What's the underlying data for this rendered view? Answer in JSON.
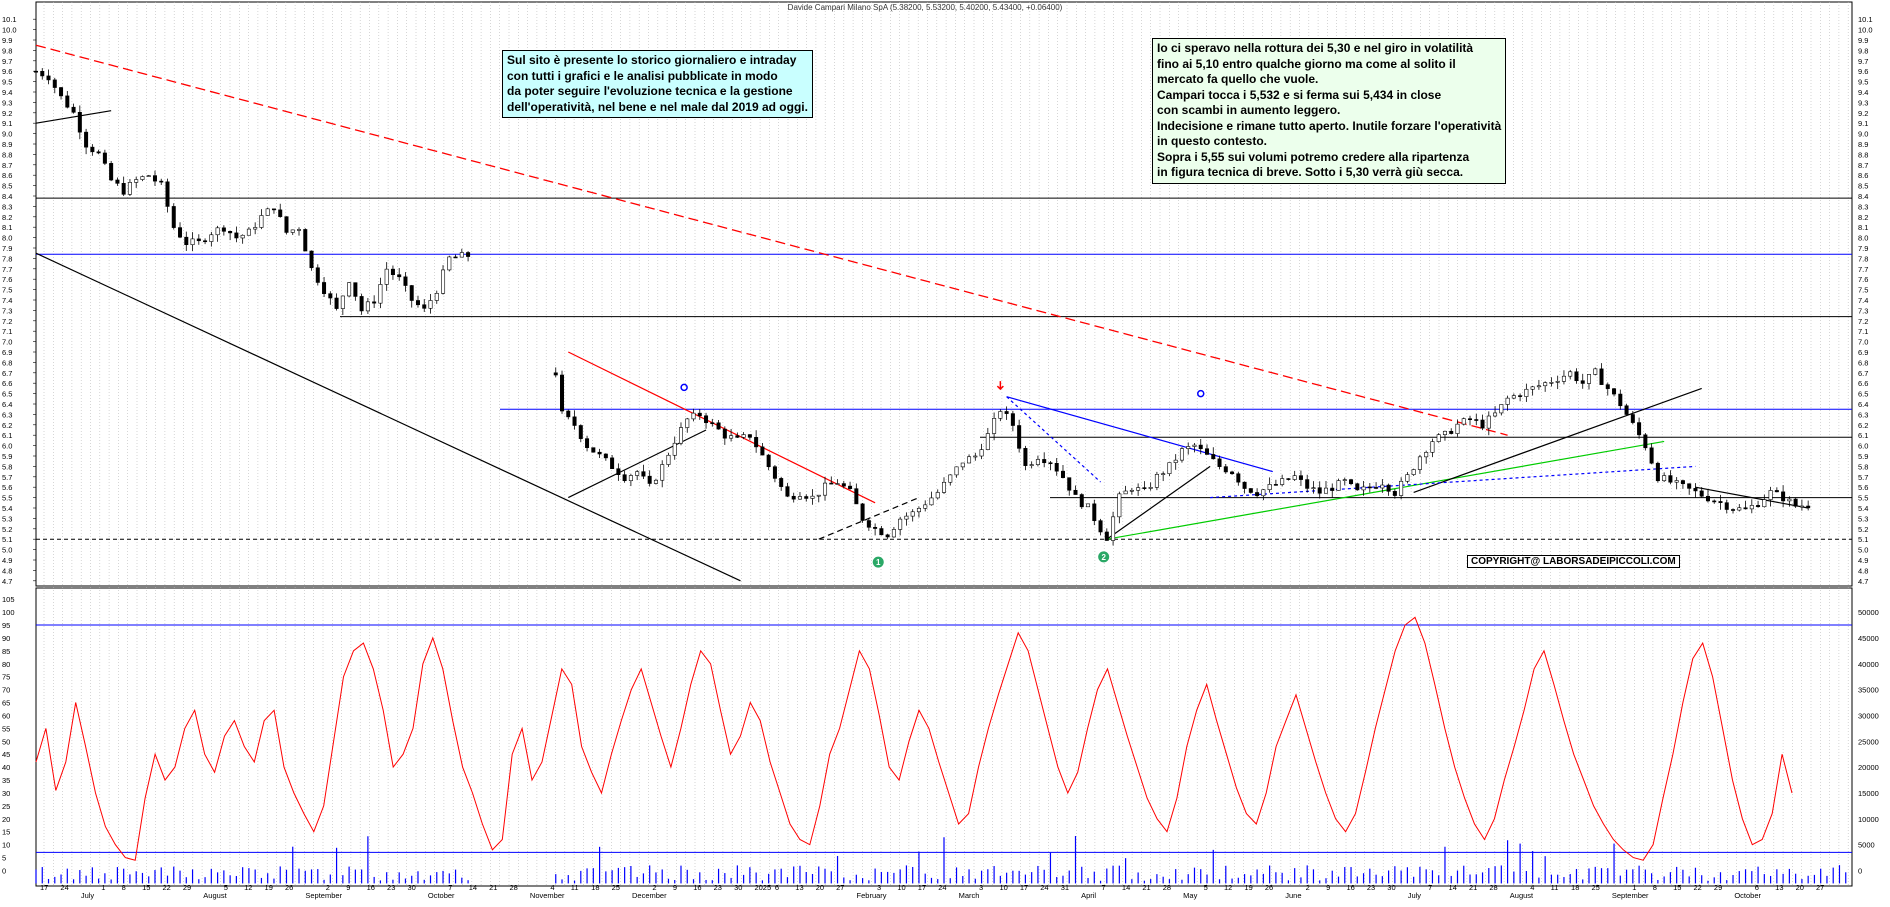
{
  "title": "Davide Campari Milano SpA (5.38200, 5.53200, 5.40200, 5.43400, +0.06400)",
  "note_left": {
    "lines": [
      "Sul sito è presente lo storico giornaliero e intraday",
      "con tutti i grafici e le analisi pubblicate in modo",
      "da poter seguire l'evoluzione tecnica e la gestione",
      "dell'operatività, nel bene e nel male dal 2019 ad oggi."
    ]
  },
  "note_right": {
    "lines": [
      "Io ci speravo nella rottura dei 5,30 e nel giro in volatilità",
      "fino ai 5,10 entro qualche giorno ma come al solito il",
      "mercato fa quello che vuole.",
      "Campari tocca i 5,532 e si ferma sui 5,434 in close",
      "con scambi in aumento leggero.",
      "Indecisione e rimane tutto aperto. Inutile forzare l'operatività",
      "in questo contesto.",
      "Sopra i 5,55 sui volumi potremo credere alla ripartenza",
      "in figura tecnica di breve. Sotto i 5,30 verrà giù secca."
    ]
  },
  "copyright": "COPYRIGHT@ LABORSADEIPICCOLI.COM",
  "colors": {
    "candle": "#000000",
    "hline_blue": "#0000ff",
    "hline_black": "#000000",
    "resistance_red_dashed": "#ff0000",
    "trend_red": "#ff0000",
    "trend_blue": "#0000ff",
    "trend_green": "#00cc00",
    "stoch_line": "#ff0000",
    "volume_bars": "#0000ff",
    "grid": "#bbbbbb"
  },
  "chart_data": [
    {
      "type": "candlestick",
      "yticks": [
        "4.7",
        "4.8",
        "4.9",
        "5.0",
        "5.1",
        "5.2",
        "5.3",
        "5.4",
        "5.5",
        "5.6",
        "5.7",
        "5.8",
        "5.9",
        "6.0",
        "6.1",
        "6.2",
        "6.3",
        "6.4",
        "6.5",
        "6.6",
        "6.7",
        "6.8",
        "6.9",
        "7.0",
        "7.1",
        "7.2",
        "7.3",
        "7.4",
        "7.5",
        "7.6",
        "7.7",
        "7.8",
        "7.9",
        "8.0",
        "8.1",
        "8.2",
        "8.3",
        "8.4",
        "8.5",
        "8.6",
        "8.7",
        "8.8",
        "8.9",
        "9.0",
        "9.1",
        "9.2",
        "9.3",
        "9.4",
        "9.5",
        "9.6",
        "9.7",
        "9.8",
        "9.9",
        "10.0",
        "10.1"
      ],
      "ylim": [
        4.65,
        10.15
      ],
      "horizontal_levels": [
        {
          "value": 8.38,
          "color": "black"
        },
        {
          "value": 7.84,
          "color": "blue"
        },
        {
          "value": 7.24,
          "color": "black"
        },
        {
          "value": 6.35,
          "color": "blue"
        },
        {
          "value": 6.08,
          "color": "black"
        },
        {
          "value": 5.5,
          "color": "black"
        },
        {
          "value": 5.1,
          "color": "black",
          "style": "dashed"
        }
      ],
      "close_path": [
        [
          0,
          9.6
        ],
        [
          4,
          9.55
        ],
        [
          8,
          9.35
        ],
        [
          12,
          9.2
        ],
        [
          16,
          8.9
        ],
        [
          20,
          8.8
        ],
        [
          24,
          8.55
        ],
        [
          28,
          8.45
        ],
        [
          32,
          8.55
        ],
        [
          36,
          8.6
        ],
        [
          40,
          8.5
        ],
        [
          44,
          8.1
        ],
        [
          48,
          7.95
        ],
        [
          52,
          7.95
        ],
        [
          56,
          8.05
        ],
        [
          60,
          8.1
        ],
        [
          64,
          8.0
        ],
        [
          68,
          8.05
        ],
        [
          72,
          8.2
        ],
        [
          76,
          8.3
        ],
        [
          80,
          8.05
        ],
        [
          84,
          8.1
        ],
        [
          88,
          7.7
        ],
        [
          92,
          7.5
        ],
        [
          96,
          7.3
        ],
        [
          100,
          7.6
        ],
        [
          104,
          7.3
        ],
        [
          108,
          7.4
        ],
        [
          112,
          7.7
        ],
        [
          116,
          7.6
        ],
        [
          120,
          7.4
        ],
        [
          124,
          7.3
        ],
        [
          128,
          7.5
        ],
        [
          132,
          7.8
        ],
        [
          136,
          7.82
        ],
        [
          139,
          7.83
        ],
        [
          166,
          6.7
        ],
        [
          168,
          6.3
        ],
        [
          172,
          6.2
        ],
        [
          176,
          6.0
        ],
        [
          180,
          5.9
        ],
        [
          184,
          5.8
        ],
        [
          188,
          5.7
        ],
        [
          192,
          5.75
        ],
        [
          196,
          5.6
        ],
        [
          200,
          5.8
        ],
        [
          204,
          6.05
        ],
        [
          208,
          6.25
        ],
        [
          212,
          6.3
        ],
        [
          216,
          6.2
        ],
        [
          220,
          6.1
        ],
        [
          224,
          6.05
        ],
        [
          228,
          6.1
        ],
        [
          232,
          5.9
        ],
        [
          236,
          5.7
        ],
        [
          240,
          5.5
        ],
        [
          244,
          5.55
        ],
        [
          248,
          5.5
        ],
        [
          252,
          5.6
        ],
        [
          256,
          5.65
        ],
        [
          260,
          5.55
        ],
        [
          264,
          5.3
        ],
        [
          268,
          5.2
        ],
        [
          272,
          5.15
        ],
        [
          276,
          5.3
        ],
        [
          280,
          5.35
        ],
        [
          284,
          5.45
        ],
        [
          288,
          5.55
        ],
        [
          292,
          5.7
        ],
        [
          296,
          5.85
        ],
        [
          300,
          5.9
        ],
        [
          304,
          6.1
        ],
        [
          308,
          6.35
        ],
        [
          312,
          6.2
        ],
        [
          316,
          5.8
        ],
        [
          320,
          5.9
        ],
        [
          324,
          5.85
        ],
        [
          328,
          5.7
        ],
        [
          332,
          5.5
        ],
        [
          336,
          5.4
        ],
        [
          340,
          5.2
        ],
        [
          342,
          5.12
        ],
        [
          346,
          5.5
        ],
        [
          350,
          5.6
        ],
        [
          354,
          5.55
        ],
        [
          358,
          5.7
        ],
        [
          362,
          5.8
        ],
        [
          366,
          5.95
        ],
        [
          370,
          6.0
        ],
        [
          374,
          5.9
        ],
        [
          378,
          5.8
        ],
        [
          382,
          5.75
        ],
        [
          386,
          5.6
        ],
        [
          390,
          5.55
        ],
        [
          394,
          5.6
        ],
        [
          398,
          5.65
        ],
        [
          402,
          5.7
        ],
        [
          406,
          5.6
        ],
        [
          410,
          5.55
        ],
        [
          414,
          5.6
        ],
        [
          418,
          5.65
        ],
        [
          422,
          5.55
        ],
        [
          426,
          5.6
        ],
        [
          430,
          5.65
        ],
        [
          434,
          5.55
        ],
        [
          438,
          5.7
        ],
        [
          442,
          5.9
        ],
        [
          446,
          6.05
        ],
        [
          450,
          6.1
        ],
        [
          454,
          6.2
        ],
        [
          458,
          6.25
        ],
        [
          462,
          6.2
        ],
        [
          466,
          6.3
        ],
        [
          470,
          6.45
        ],
        [
          474,
          6.5
        ],
        [
          478,
          6.55
        ],
        [
          482,
          6.6
        ],
        [
          486,
          6.65
        ],
        [
          490,
          6.7
        ],
        [
          494,
          6.6
        ],
        [
          498,
          6.7
        ],
        [
          502,
          6.55
        ],
        [
          506,
          6.4
        ],
        [
          510,
          6.2
        ],
        [
          514,
          6.0
        ],
        [
          518,
          5.7
        ],
        [
          522,
          5.65
        ],
        [
          526,
          5.6
        ],
        [
          530,
          5.55
        ],
        [
          534,
          5.5
        ],
        [
          538,
          5.45
        ],
        [
          542,
          5.4
        ],
        [
          546,
          5.38
        ],
        [
          550,
          5.45
        ],
        [
          554,
          5.55
        ],
        [
          558,
          5.5
        ],
        [
          562,
          5.42
        ],
        [
          566,
          5.43
        ]
      ],
      "annotations": [
        "1",
        "2"
      ]
    },
    {
      "type": "line",
      "name": "",
      "yticks": [
        "0",
        "5",
        "10",
        "15",
        "20",
        "25",
        "30",
        "35",
        "40",
        "45",
        "50",
        "55",
        "60",
        "65",
        "70",
        "75",
        "80",
        "85",
        "90",
        "95",
        "100",
        "105"
      ],
      "ylim": [
        -6,
        107
      ],
      "right_yticks": [
        "0",
        "5000",
        "10000",
        "15000",
        "20000",
        "25000",
        "30000",
        "35000",
        "40000",
        "45000",
        "50000"
      ],
      "levels": [
        95,
        7
      ],
      "values": [
        42,
        55,
        31,
        42,
        65,
        48,
        30,
        17,
        10,
        5,
        4,
        28,
        45,
        35,
        40,
        55,
        62,
        45,
        38,
        52,
        58,
        48,
        42,
        58,
        62,
        40,
        30,
        22,
        15,
        25,
        50,
        75,
        85,
        88,
        78,
        62,
        40,
        45,
        55,
        80,
        90,
        78,
        58,
        40,
        30,
        18,
        8,
        12,
        45,
        55,
        35,
        42,
        60,
        78,
        72,
        48,
        38,
        30,
        45,
        58,
        70,
        78,
        65,
        52,
        40,
        55,
        72,
        85,
        80,
        62,
        45,
        52,
        65,
        58,
        42,
        30,
        18,
        12,
        10,
        25,
        45,
        55,
        70,
        85,
        78,
        60,
        40,
        35,
        50,
        62,
        55,
        42,
        30,
        18,
        22,
        40,
        55,
        68,
        80,
        92,
        85,
        70,
        55,
        40,
        30,
        38,
        55,
        70,
        78,
        65,
        52,
        40,
        28,
        20,
        15,
        28,
        48,
        62,
        72,
        58,
        45,
        32,
        22,
        18,
        30,
        48,
        58,
        68,
        55,
        42,
        30,
        20,
        15,
        22,
        38,
        55,
        70,
        85,
        95,
        98,
        88,
        72,
        55,
        40,
        28,
        18,
        12,
        20,
        35,
        48,
        62,
        78,
        85,
        72,
        58,
        45,
        35,
        25,
        18,
        12,
        8,
        5,
        4,
        10,
        28,
        45,
        65,
        82,
        88,
        75,
        55,
        35,
        20,
        10,
        12,
        22,
        45,
        30
      ],
      "x_labels": [
        "17",
        "24",
        "July",
        "1",
        "8",
        "15",
        "22",
        "29",
        "August",
        "5",
        "12",
        "19",
        "26",
        "September",
        "2",
        "9",
        "16",
        "23",
        "30",
        "October",
        "7",
        "14",
        "21",
        "28",
        "November",
        "4",
        "11",
        "18",
        "25",
        "December",
        "2",
        "9",
        "16",
        "23",
        "30",
        "2025",
        "6",
        "13",
        "20",
        "27",
        "February",
        "3",
        "10",
        "17",
        "24",
        "March",
        "3",
        "10",
        "17",
        "24",
        "31",
        "April",
        "7",
        "14",
        "21",
        "28",
        "May",
        "5",
        "12",
        "19",
        "26",
        "June",
        "2",
        "9",
        "16",
        "23",
        "30",
        "July",
        "7",
        "14",
        "21",
        "28",
        "August",
        "4",
        "11",
        "18",
        "25",
        "September",
        "1",
        "8",
        "15",
        "22",
        "29",
        "October",
        "6",
        "13",
        "20",
        "27"
      ]
    }
  ]
}
